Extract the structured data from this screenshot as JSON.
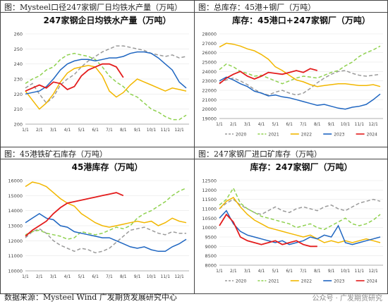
{
  "footer": {
    "source": "数据来源：Mysteel Wind 广发期货发展研究中心",
    "watermark": "公众号 · 广发期货研究"
  },
  "months": [
    "1/1",
    "2/1",
    "3/1",
    "4/1",
    "5/1",
    "6/1",
    "7/1",
    "8/1",
    "9/1",
    "10/1",
    "11/1",
    "12/1"
  ],
  "series_style": [
    {
      "name": "2020",
      "color": "#9a9a9a",
      "dash": "5,3"
    },
    {
      "name": "2021",
      "color": "#8fd14f",
      "dash": "5,3"
    },
    {
      "name": "2022",
      "color": "#f2b700",
      "dash": ""
    },
    {
      "name": "2023",
      "color": "#1f66c1",
      "dash": ""
    },
    {
      "name": "2024",
      "color": "#e31c1c",
      "dash": ""
    }
  ],
  "chart_data": [
    {
      "id": "c1",
      "panel_title": "图：Mysteel口径247家钢厂日均铁水产量（万吨）",
      "title": "247家钢企日均铁水产量（万吨）",
      "type": "line",
      "ylim": [
        200,
        260
      ],
      "yticks": [
        200,
        210,
        220,
        230,
        240,
        250,
        260
      ],
      "legend": false,
      "series": [
        {
          "name": "2020",
          "x": [
            0,
            0.5,
            1,
            1.5,
            2,
            2.5,
            3,
            3.5,
            4,
            4.5,
            5,
            5.5,
            6,
            6.5,
            7,
            7.5,
            8,
            8.5,
            9,
            9.5,
            10,
            10.5,
            11,
            11.5
          ],
          "y": [
            224,
            227,
            220,
            214,
            218,
            226,
            230,
            233,
            238,
            242,
            245,
            248,
            250,
            252,
            252,
            251,
            250,
            249,
            247,
            246,
            245,
            246,
            244,
            245
          ]
        },
        {
          "name": "2021",
          "x": [
            0,
            0.5,
            1,
            1.5,
            2,
            2.5,
            3,
            3.5,
            4,
            4.5,
            5,
            5.5,
            6,
            6.5,
            7,
            7.5,
            8,
            8.5,
            9,
            9.5,
            10,
            10.5,
            11,
            11.5
          ],
          "y": [
            227,
            230,
            232,
            236,
            238,
            243,
            246,
            247,
            246,
            245,
            243,
            238,
            232,
            228,
            225,
            220,
            218,
            214,
            210,
            208,
            205,
            203,
            203,
            206
          ]
        },
        {
          "name": "2022",
          "x": [
            0,
            0.5,
            1,
            1.5,
            2,
            2.5,
            3,
            3.5,
            4,
            4.5,
            5,
            5.5,
            6,
            6.5,
            7,
            7.5,
            8,
            8.5,
            9,
            9.5,
            10,
            10.5,
            11,
            11.5
          ],
          "y": [
            222,
            216,
            210,
            214,
            220,
            228,
            234,
            237,
            238,
            239,
            238,
            232,
            222,
            218,
            221,
            226,
            230,
            228,
            226,
            224,
            222,
            224,
            223,
            222
          ]
        },
        {
          "name": "2023",
          "x": [
            0,
            0.5,
            1,
            1.5,
            2,
            2.5,
            3,
            3.5,
            4,
            4.5,
            5,
            5.5,
            6,
            6.5,
            7,
            7.5,
            8,
            8.5,
            9,
            9.5,
            10,
            10.5,
            11,
            11.5
          ],
          "y": [
            220,
            221,
            222,
            225,
            230,
            236,
            240,
            242,
            243,
            243,
            242,
            243,
            244,
            244,
            245,
            247,
            248,
            248,
            247,
            244,
            240,
            236,
            228,
            224
          ]
        },
        {
          "name": "2024",
          "x": [
            0,
            0.5,
            1,
            1.5,
            2,
            2.5,
            3,
            3.5,
            4,
            4.5,
            5,
            5.5,
            6,
            6.5,
            7
          ],
          "y": [
            222,
            224,
            226,
            224,
            228,
            227,
            223,
            225,
            232,
            236,
            238,
            240,
            240,
            238,
            231
          ]
        }
      ]
    },
    {
      "id": "c2",
      "panel_title": "图：总库存：45港+钢厂（万吨）",
      "title": "库存：45港口+247家钢厂（万吨）",
      "type": "line",
      "ylim": [
        19000,
        28000
      ],
      "yticks": [
        19000,
        20000,
        21000,
        22000,
        23000,
        24000,
        25000,
        26000,
        27000,
        28000
      ],
      "legend": true,
      "series": [
        {
          "name": "2020",
          "x": [
            0,
            0.5,
            1,
            1.5,
            2,
            2.5,
            3,
            3.5,
            4,
            4.5,
            5,
            5.5,
            6,
            6.5,
            7,
            7.5,
            8,
            8.5,
            9,
            9.5,
            10,
            10.5,
            11,
            11.5
          ],
          "y": [
            22800,
            23100,
            23300,
            23000,
            22600,
            22100,
            21700,
            21500,
            21800,
            22000,
            21700,
            21500,
            21700,
            22200,
            22800,
            23300,
            23700,
            24000,
            24100,
            23800,
            23600,
            23500,
            23600,
            23700
          ]
        },
        {
          "name": "2021",
          "x": [
            0,
            0.5,
            1,
            1.5,
            2,
            2.5,
            3,
            3.5,
            4,
            4.5,
            5,
            5.5,
            6,
            6.5,
            7,
            7.5,
            8,
            8.5,
            9,
            9.5,
            10,
            10.5,
            11,
            11.5
          ],
          "y": [
            24200,
            24800,
            24500,
            24000,
            23800,
            23500,
            23600,
            23300,
            23000,
            22700,
            23000,
            23300,
            23500,
            23400,
            23300,
            23600,
            23900,
            24100,
            24600,
            25000,
            25600,
            26000,
            26300,
            26700
          ]
        },
        {
          "name": "2022",
          "x": [
            0,
            0.5,
            1,
            1.5,
            2,
            2.5,
            3,
            3.5,
            4,
            4.5,
            5,
            5.5,
            6,
            6.5,
            7,
            7.5,
            8,
            8.5,
            9,
            9.5,
            10,
            10.5,
            11,
            11.5
          ],
          "y": [
            26600,
            27000,
            26900,
            26700,
            26400,
            26200,
            25800,
            25300,
            24500,
            24100,
            23600,
            23100,
            22900,
            22600,
            22400,
            22500,
            22600,
            22700,
            22700,
            22600,
            22500,
            22500,
            22600,
            22400
          ]
        },
        {
          "name": "2023",
          "x": [
            0,
            0.5,
            1,
            1.5,
            2,
            2.5,
            3,
            3.5,
            4,
            4.5,
            5,
            5.5,
            6,
            6.5,
            7,
            7.5,
            8,
            8.5,
            9,
            9.5,
            10,
            10.5,
            11,
            11.5
          ],
          "y": [
            23000,
            23400,
            23100,
            22700,
            22400,
            21900,
            21700,
            21400,
            21500,
            21300,
            21200,
            21000,
            20800,
            20600,
            20400,
            20500,
            20300,
            20100,
            20000,
            20200,
            20300,
            20500,
            21000,
            21600
          ]
        },
        {
          "name": "2024",
          "x": [
            0,
            0.5,
            1,
            1.5,
            2,
            2.5,
            3,
            3.5,
            4,
            4.5,
            5,
            5.5,
            6,
            6.5,
            7
          ],
          "y": [
            22700,
            23300,
            23700,
            24000,
            23500,
            23200,
            23500,
            23900,
            23800,
            23700,
            23900,
            24100,
            23900,
            24300,
            24100
          ]
        }
      ]
    },
    {
      "id": "c3",
      "panel_title": "图：45港铁矿石库存（万吨）",
      "title": "45港库存（万吨）",
      "type": "line",
      "ylim": [
        10000,
        16000
      ],
      "yticks": [
        10000,
        11000,
        12000,
        13000,
        14000,
        15000,
        16000
      ],
      "legend": false,
      "series": [
        {
          "name": "2020",
          "x": [
            0,
            0.5,
            1,
            1.5,
            2,
            2.5,
            3,
            3.5,
            4,
            4.5,
            5,
            5.5,
            6,
            6.5,
            7,
            7.5,
            8,
            8.5,
            9,
            9.5,
            10,
            10.5,
            11,
            11.5
          ],
          "y": [
            12200,
            12600,
            12800,
            12500,
            12000,
            11700,
            11500,
            11300,
            11500,
            11400,
            11200,
            11300,
            11500,
            11900,
            12300,
            12700,
            12800,
            12900,
            12700,
            12500,
            12400,
            12600,
            12500,
            12500
          ]
        },
        {
          "name": "2021",
          "x": [
            0,
            0.5,
            1,
            1.5,
            2,
            2.5,
            3,
            3.5,
            4,
            4.5,
            5,
            5.5,
            6,
            6.5,
            7,
            7.5,
            8,
            8.5,
            9,
            9.5,
            10,
            10.5,
            11,
            11.5
          ],
          "y": [
            12400,
            12600,
            12700,
            12500,
            12400,
            12300,
            12100,
            12200,
            12600,
            12500,
            12400,
            12500,
            12700,
            12900,
            12800,
            13000,
            13500,
            13800,
            14000,
            14300,
            14600,
            15000,
            15300,
            15500
          ]
        },
        {
          "name": "2022",
          "x": [
            0,
            0.5,
            1,
            1.5,
            2,
            2.5,
            3,
            3.5,
            4,
            4.5,
            5,
            5.5,
            6,
            6.5,
            7,
            7.5,
            8,
            8.5,
            9,
            9.5,
            10,
            10.5,
            11,
            11.5
          ],
          "y": [
            15600,
            15900,
            15800,
            15600,
            15200,
            14800,
            14500,
            14300,
            13800,
            13500,
            13200,
            13000,
            12900,
            13000,
            13100,
            13200,
            13300,
            13200,
            13300,
            13000,
            13200,
            13500,
            13300,
            13200
          ]
        },
        {
          "name": "2023",
          "x": [
            0,
            0.5,
            1,
            1.5,
            2,
            2.5,
            3,
            3.5,
            4,
            4.5,
            5,
            5.5,
            6,
            6.5,
            7,
            7.5,
            8,
            8.5,
            9,
            9.5,
            10,
            10.5,
            11,
            11.5
          ],
          "y": [
            13200,
            13500,
            13800,
            13500,
            13400,
            13000,
            12900,
            12600,
            12500,
            12400,
            12300,
            12200,
            12200,
            12000,
            11800,
            11600,
            11500,
            11600,
            11400,
            11300,
            11300,
            11600,
            11800,
            12100
          ]
        },
        {
          "name": "2024",
          "x": [
            0,
            0.5,
            1,
            1.5,
            2,
            2.5,
            3,
            3.5,
            4,
            4.5,
            5,
            5.5,
            6,
            6.5,
            7
          ],
          "y": [
            12300,
            12700,
            13000,
            13300,
            13800,
            14200,
            14500,
            14600,
            14700,
            14800,
            14900,
            15000,
            15100,
            15200,
            15000
          ]
        }
      ]
    },
    {
      "id": "c4",
      "panel_title": "图：247家钢厂进口矿库存（万吨）",
      "title": "库存：247家钢厂（万吨）",
      "type": "line",
      "ylim": [
        8000,
        12500
      ],
      "yticks": [
        8000,
        8500,
        9000,
        9500,
        10000,
        10500,
        11000,
        11500,
        12000,
        12500
      ],
      "legend": true,
      "series": [
        {
          "name": "2020",
          "x": [
            0,
            0.5,
            1,
            1.5,
            2,
            2.5,
            3,
            3.5,
            4,
            4.5,
            5,
            5.5,
            6,
            6.5,
            7,
            7.5,
            8,
            8.5,
            9,
            9.5,
            10,
            10.5,
            11,
            11.5
          ],
          "y": [
            11000,
            11300,
            11500,
            11200,
            11000,
            10800,
            10700,
            10900,
            11100,
            10900,
            10800,
            11000,
            11100,
            11000,
            10900,
            11100,
            11200,
            11000,
            10900,
            11100,
            11300,
            11400,
            11500,
            11400
          ]
        },
        {
          "name": "2021",
          "x": [
            0,
            0.5,
            1,
            1.5,
            2,
            2.5,
            3,
            3.5,
            4,
            4.5,
            5,
            5.5,
            6,
            6.5,
            7,
            7.5,
            8,
            8.5,
            9,
            9.5,
            10,
            10.5,
            11,
            11.5
          ],
          "y": [
            11200,
            11500,
            12100,
            11300,
            11000,
            10800,
            10600,
            10500,
            10400,
            10300,
            10200,
            10000,
            10100,
            10200,
            10000,
            9900,
            10100,
            10300,
            10500,
            10200,
            10100,
            10200,
            10400,
            10700
          ]
        },
        {
          "name": "2022",
          "x": [
            0,
            0.5,
            1,
            1.5,
            2,
            2.5,
            3,
            3.5,
            4,
            4.5,
            5,
            5.5,
            6,
            6.5,
            7,
            7.5,
            8,
            8.5,
            9,
            9.5,
            10,
            10.5,
            11,
            11.5
          ],
          "y": [
            11000,
            11400,
            11600,
            11100,
            10700,
            10400,
            10200,
            10000,
            9900,
            9800,
            9700,
            9600,
            9500,
            9600,
            9400,
            9200,
            9300,
            9200,
            9300,
            9200,
            9300,
            9400,
            9300,
            9200
          ]
        },
        {
          "name": "2023",
          "x": [
            0,
            0.5,
            1,
            1.5,
            2,
            2.5,
            3,
            3.5,
            4,
            4.5,
            5,
            5.5,
            6,
            6.5,
            7,
            7.5,
            8,
            8.5,
            9,
            9.5,
            10,
            10.5,
            11,
            11.5
          ],
          "y": [
            10500,
            10900,
            10200,
            9800,
            9600,
            9500,
            9400,
            9300,
            9200,
            9300,
            9100,
            9200,
            9300,
            9500,
            9400,
            9600,
            9500,
            10100,
            9200,
            9100,
            9200,
            9300,
            9400,
            9500
          ]
        },
        {
          "name": "2024",
          "x": [
            0,
            0.5,
            1,
            1.5,
            2,
            2.5,
            3,
            3.5,
            4,
            4.5,
            5,
            5.5,
            6,
            6.5,
            7
          ],
          "y": [
            10100,
            10700,
            10300,
            9500,
            9300,
            9200,
            9100,
            9200,
            9300,
            9100,
            9200,
            9300,
            9100,
            9000,
            9000
          ]
        }
      ]
    }
  ]
}
